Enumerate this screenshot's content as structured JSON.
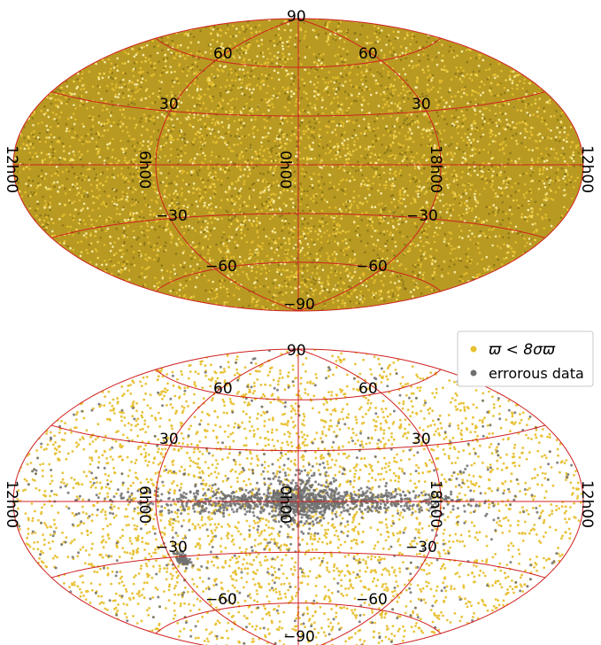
{
  "colors": {
    "foreground": "#e8c030",
    "errorous": "#707070",
    "grid": "#d02020"
  },
  "chart_data": [
    {
      "type": "scatter",
      "projection": "aitoff",
      "coordinate_label_lat": [
        "90",
        "60",
        "30",
        "−30",
        "−60",
        "−90"
      ],
      "coordinate_label_lon": [
        "12h00",
        "6h00",
        "0h00",
        "18h00",
        "12h00"
      ],
      "latitude_lines": [
        -60,
        -30,
        0,
        30,
        60
      ],
      "longitude_lines": [
        -180,
        -90,
        0,
        90,
        180
      ],
      "series": [
        {
          "name": "",
          "color": "#e8c030",
          "distribution": "uniform-dense"
        }
      ]
    },
    {
      "type": "scatter",
      "projection": "aitoff",
      "coordinate_label_lat": [
        "90",
        "60",
        "30",
        "−30",
        "−60",
        "−90"
      ],
      "coordinate_label_lon": [
        "12h00",
        "6h00",
        "0h00",
        "18h00",
        "12h00"
      ],
      "latitude_lines": [
        -60,
        -30,
        0,
        30,
        60
      ],
      "longitude_lines": [
        -180,
        -90,
        0,
        90,
        180
      ],
      "legend_position": "top-right",
      "series": [
        {
          "name": "ϖ < 8σϖ",
          "color": "#e8c030",
          "distribution": "uniform-sparse"
        },
        {
          "name": "errorous data",
          "color": "#707070",
          "distribution": "galactic-plane"
        }
      ]
    }
  ]
}
